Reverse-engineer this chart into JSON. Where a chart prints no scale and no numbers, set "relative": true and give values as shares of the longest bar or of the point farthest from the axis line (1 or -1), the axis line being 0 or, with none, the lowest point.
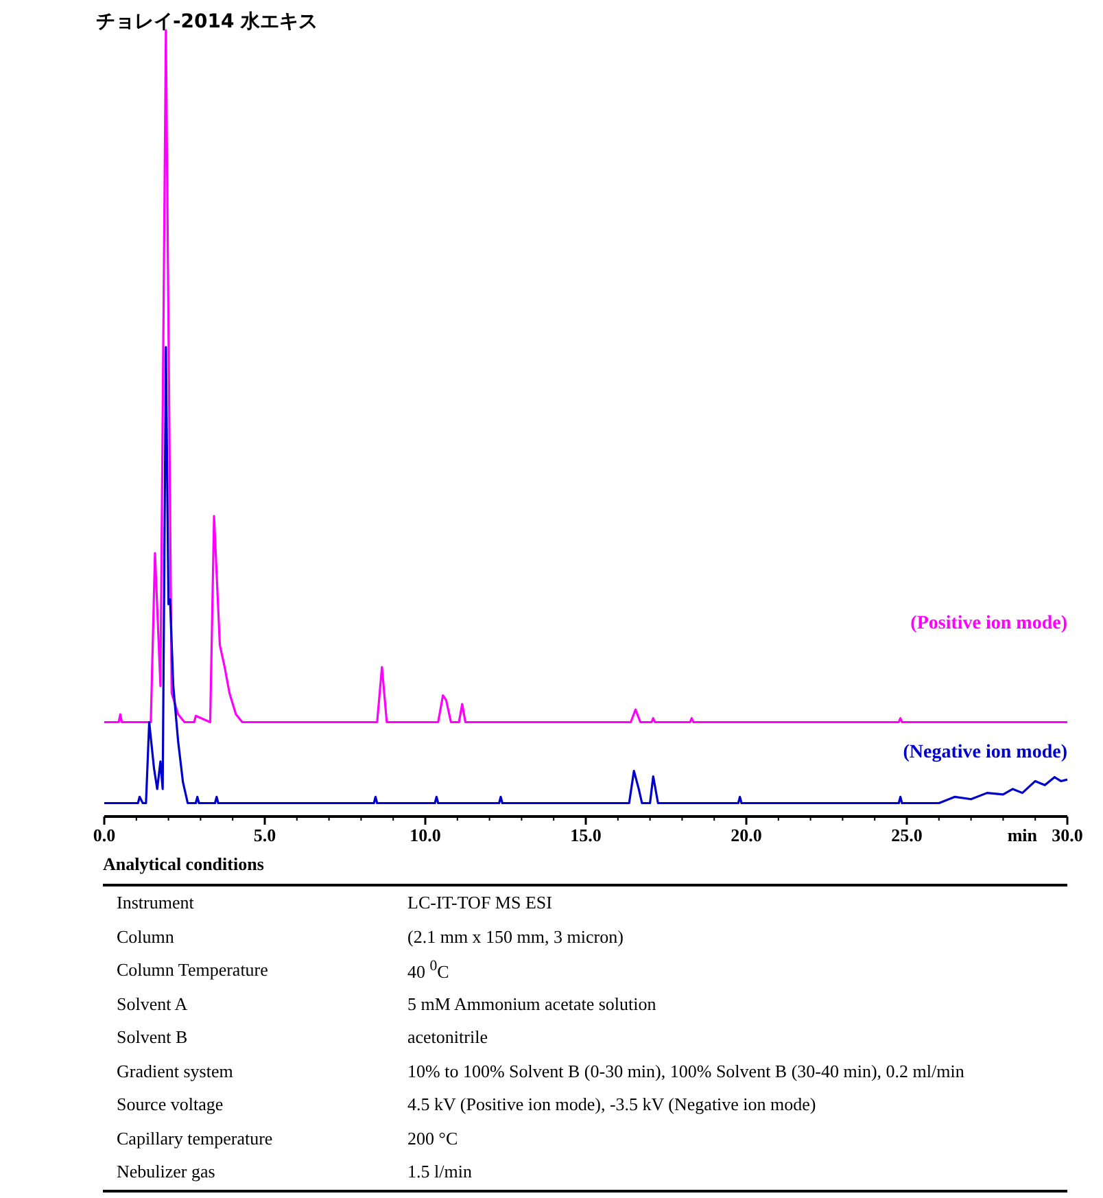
{
  "chart_data": {
    "type": "line",
    "title": "チョレイ-2014 水エキス",
    "xlabel": "min",
    "relative": true,
    "xlim": [
      0,
      30
    ],
    "xticks": [
      {
        "value": 0,
        "label": "0.0"
      },
      {
        "value": 5,
        "label": "5.0"
      },
      {
        "value": 10,
        "label": "10.0"
      },
      {
        "value": 15,
        "label": "15.0"
      },
      {
        "value": 20,
        "label": "20.0"
      },
      {
        "value": 25,
        "label": "25.0"
      },
      {
        "value": 30,
        "label": "30.0"
      }
    ],
    "series": [
      {
        "name": "(Positive ion mode)",
        "color": "#ff00ff",
        "x": [
          0,
          0.45,
          0.5,
          0.55,
          1.45,
          1.58,
          1.75,
          1.92,
          2.1,
          2.3,
          2.5,
          2.8,
          2.85,
          3.3,
          3.42,
          3.6,
          3.75,
          3.9,
          4.1,
          4.3,
          8.5,
          8.65,
          8.8,
          10.4,
          10.55,
          10.65,
          10.8,
          11.05,
          11.15,
          11.25,
          16.4,
          16.55,
          16.7,
          17.05,
          17.1,
          17.15,
          18.25,
          18.3,
          18.35,
          24.75,
          24.8,
          24.85,
          30
        ],
        "values": [
          0.12,
          0.12,
          0.13,
          0.12,
          0.12,
          0.335,
          0.166,
          1.0,
          0.157,
          0.13,
          0.12,
          0.12,
          0.128,
          0.12,
          0.382,
          0.218,
          0.19,
          0.157,
          0.13,
          0.12,
          0.12,
          0.19,
          0.12,
          0.12,
          0.154,
          0.148,
          0.12,
          0.12,
          0.143,
          0.12,
          0.12,
          0.136,
          0.12,
          0.12,
          0.125,
          0.12,
          0.12,
          0.125,
          0.12,
          0.12,
          0.125,
          0.12,
          0.12
        ]
      },
      {
        "name": "(Negative ion mode)",
        "color": "#0000cc",
        "x": [
          0,
          1.05,
          1.1,
          1.2,
          1.3,
          1.4,
          1.55,
          1.65,
          1.75,
          1.82,
          1.92,
          2.0,
          2.05,
          2.15,
          2.3,
          2.45,
          2.6,
          2.85,
          2.9,
          2.95,
          3.45,
          3.5,
          3.55,
          8.4,
          8.45,
          8.5,
          10.3,
          10.35,
          10.4,
          12.3,
          12.35,
          12.4,
          16.35,
          16.5,
          16.65,
          16.75,
          17.0,
          17.1,
          17.25,
          19.75,
          19.8,
          19.85,
          24.75,
          24.8,
          24.85,
          26.0,
          26.5,
          27.0,
          27.5,
          28.0,
          28.3,
          28.6,
          29.0,
          29.3,
          29.6,
          29.8,
          30
        ],
        "values": [
          0.017,
          0.017,
          0.025,
          0.017,
          0.017,
          0.12,
          0.061,
          0.035,
          0.07,
          0.035,
          0.597,
          0.27,
          0.276,
          0.166,
          0.096,
          0.044,
          0.017,
          0.017,
          0.025,
          0.017,
          0.017,
          0.025,
          0.017,
          0.017,
          0.025,
          0.017,
          0.017,
          0.025,
          0.017,
          0.017,
          0.025,
          0.017,
          0.017,
          0.058,
          0.035,
          0.017,
          0.017,
          0.051,
          0.017,
          0.017,
          0.025,
          0.017,
          0.017,
          0.025,
          0.017,
          0.017,
          0.025,
          0.022,
          0.03,
          0.028,
          0.035,
          0.03,
          0.045,
          0.04,
          0.05,
          0.045,
          0.047
        ]
      }
    ],
    "annotations": [
      "Analytical conditions",
      "Instrument",
      "LC-IT-TOF MS ESI",
      "Column",
      "(2.1 mm x 150 mm, 3 micron)",
      "Column Temperature",
      "40 $^{0}$C",
      "Solvent A",
      "5 mM Ammonium acetate solution",
      "Solvent B",
      "acetonitrile",
      "Gradient system",
      "10% to 100% Solvent B (0-30 min), 100% Solvent B (30-40 min), 0.2 ml/min",
      "Source voltage",
      "4.5 kV (Positive ion mode), -3.5 kV (Negative ion mode)",
      "Capillary temperature",
      "200 °C",
      "Nebulizer gas",
      "1.5 l/min"
    ]
  }
}
